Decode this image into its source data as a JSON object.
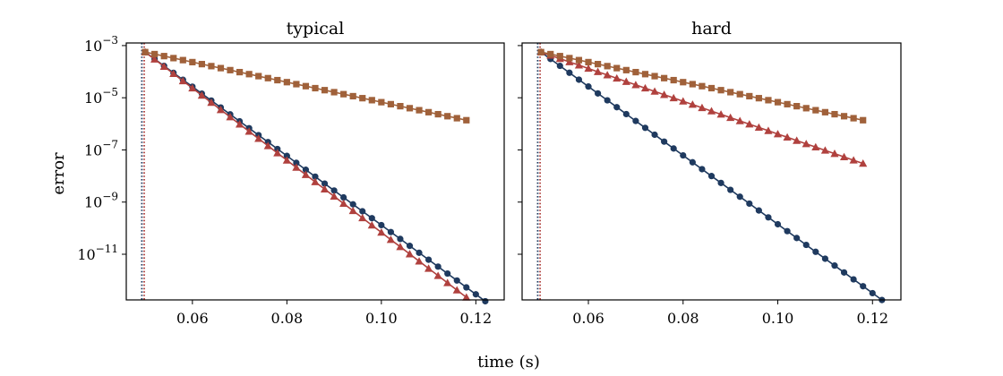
{
  "figure": {
    "xlabel": "time (s)",
    "ylabel": "error"
  },
  "chart_data": [
    {
      "type": "line",
      "title": "typical",
      "yscale": "log",
      "xlim": [
        0.046,
        0.126
      ],
      "ylim_exp": [
        -12.75,
        -2.9
      ],
      "x_ticks": [
        {
          "value": 0.06,
          "label": "0.06"
        },
        {
          "value": 0.08,
          "label": "0.08"
        },
        {
          "value": 0.1,
          "label": "0.10"
        },
        {
          "value": 0.12,
          "label": "0.12"
        }
      ],
      "y_ticks": [
        {
          "exp": -3,
          "base": "10",
          "sup": "−3"
        },
        {
          "exp": -5,
          "base": "10",
          "sup": "−5"
        },
        {
          "exp": -7,
          "base": "10",
          "sup": "−7"
        },
        {
          "exp": -9,
          "base": "10",
          "sup": "−9"
        },
        {
          "exp": -11,
          "base": "10",
          "sup": "−11"
        }
      ],
      "vlines": [
        {
          "x": 0.0493,
          "color": "#1f3a5f"
        },
        {
          "x": 0.0498,
          "color": "#b0413e"
        }
      ],
      "series": [
        {
          "name": "circle-series",
          "marker": "circle",
          "color": "#1f3a5f",
          "x_start": 0.05,
          "x_step": 0.002,
          "count": 37,
          "exp_start": -3.25,
          "exp_step": -0.2653
        },
        {
          "name": "triangle-series",
          "marker": "triangle",
          "color": "#b0413e",
          "x_start": 0.05,
          "x_step": 0.002,
          "count": 35,
          "exp_start": -3.25,
          "exp_step": -0.2765
        },
        {
          "name": "square-series",
          "marker": "square",
          "color": "#a0613a",
          "x_start": 0.05,
          "x_step": 0.002,
          "count": 35,
          "exp_start": -3.25,
          "exp_step": -0.0768
        }
      ]
    },
    {
      "type": "line",
      "title": "hard",
      "yscale": "log",
      "xlim": [
        0.046,
        0.126
      ],
      "ylim_exp": [
        -12.75,
        -2.9
      ],
      "x_ticks": [
        {
          "value": 0.06,
          "label": "0.06"
        },
        {
          "value": 0.08,
          "label": "0.08"
        },
        {
          "value": 0.1,
          "label": "0.10"
        },
        {
          "value": 0.12,
          "label": "0.12"
        }
      ],
      "y_ticks": [
        {
          "exp": -3,
          "base": "",
          "sup": ""
        },
        {
          "exp": -5,
          "base": "",
          "sup": ""
        },
        {
          "exp": -7,
          "base": "",
          "sup": ""
        },
        {
          "exp": -9,
          "base": "",
          "sup": ""
        },
        {
          "exp": -11,
          "base": "",
          "sup": ""
        }
      ],
      "vlines": [
        {
          "x": 0.0493,
          "color": "#1f3a5f"
        },
        {
          "x": 0.0498,
          "color": "#b0413e"
        }
      ],
      "series": [
        {
          "name": "circle-series",
          "marker": "circle",
          "color": "#1f3a5f",
          "x_start": 0.05,
          "x_step": 0.002,
          "count": 37,
          "exp_start": -3.25,
          "exp_step": -0.264
        },
        {
          "name": "triangle-series",
          "marker": "triangle",
          "color": "#b0413e",
          "x_start": 0.05,
          "x_step": 0.002,
          "count": 35,
          "exp_start": -3.25,
          "exp_step": -0.1256
        },
        {
          "name": "square-series",
          "marker": "square",
          "color": "#a0613a",
          "x_start": 0.05,
          "x_step": 0.002,
          "count": 35,
          "exp_start": -3.25,
          "exp_step": -0.0768
        }
      ]
    }
  ]
}
